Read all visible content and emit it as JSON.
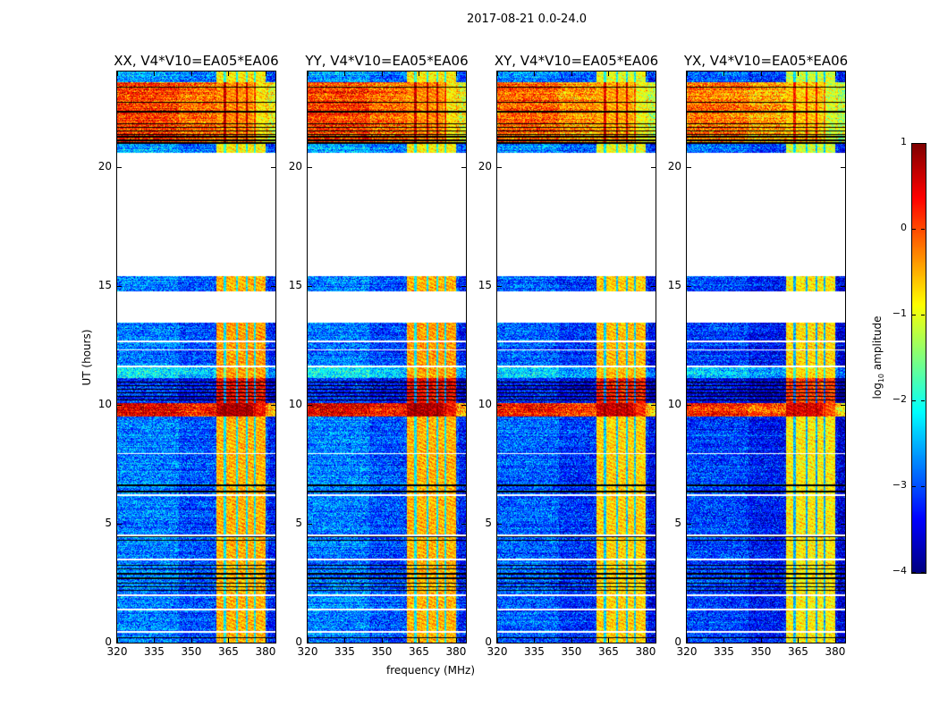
{
  "chart_data": {
    "type": "heatmap",
    "title": "2017-08-21 0.0-24.0",
    "xlabel": "frequency (MHz)",
    "ylabel": "UT (hours)",
    "xlim": [
      320,
      384
    ],
    "ylim": [
      0,
      24
    ],
    "xticks": [
      320,
      335,
      350,
      365,
      380
    ],
    "yticks": [
      0,
      5,
      10,
      15,
      20
    ],
    "colorbar": {
      "label_main": "log",
      "label_sub": "10",
      "label_rest": " amplitude",
      "colormap": "jet",
      "range": [
        -4,
        1
      ],
      "ticks": [
        1,
        0,
        -1,
        -2,
        -3,
        -4
      ],
      "tick_labels": [
        "1",
        "0",
        "−1",
        "−2",
        "−3",
        "−4"
      ]
    },
    "panels": [
      {
        "title": "XX, V4*V10=EA05*EA06",
        "level_offset": 0.0
      },
      {
        "title": "YY, V4*V10=EA05*EA06",
        "level_offset": 0.0
      },
      {
        "title": "XY, V4*V10=EA05*EA06",
        "level_offset": -0.15
      },
      {
        "title": "YX, V4*V10=EA05*EA06",
        "level_offset": -0.3
      }
    ],
    "rfi_band_mhz": [
      360,
      380
    ],
    "rfi_gaps_mhz": [
      363.6,
      368.5,
      372.4,
      375.6
    ],
    "time_segments": [
      {
        "hours": [
          0,
          9.5
        ],
        "base": -3.0,
        "rfi": -0.5
      },
      {
        "hours": [
          9.5,
          10.05
        ],
        "base": 0.3,
        "rfi": 0.8
      },
      {
        "hours": [
          10.05,
          11.1
        ],
        "base": -3.4,
        "rfi": 0.4
      },
      {
        "hours": [
          11.1,
          11.6
        ],
        "base": -2.4,
        "rfi": -0.4
      },
      {
        "hours": [
          11.6,
          13.45
        ],
        "base": -3.0,
        "rfi": -0.4
      },
      {
        "hours": [
          14.7,
          15.45
        ],
        "base": -3.0,
        "rfi": -0.5
      },
      {
        "hours": [
          20.6,
          20.95
        ],
        "base": -2.8,
        "rfi": -0.8
      },
      {
        "hours": [
          20.95,
          23.55
        ],
        "base": -0.15,
        "rfi": -0.3
      },
      {
        "hours": [
          23.55,
          24
        ],
        "base": -2.8,
        "rfi": -0.8
      }
    ],
    "flagged_lines_hours": [
      0.45,
      1.4,
      2.0,
      3.5,
      4.5,
      6.2,
      7.95,
      11.6,
      12.3,
      12.65,
      14.72,
      15.43
    ],
    "dark_lines_hours": [
      0.2,
      2.2,
      2.35,
      2.5,
      2.7,
      2.9,
      3.1,
      3.25,
      4.3,
      4.45,
      6.35,
      6.6,
      10.2,
      10.35,
      10.5,
      10.65,
      10.8,
      10.95,
      21.0,
      21.1,
      21.25,
      21.35,
      21.5,
      21.65,
      21.8,
      22.3,
      22.7,
      23.35
    ]
  }
}
